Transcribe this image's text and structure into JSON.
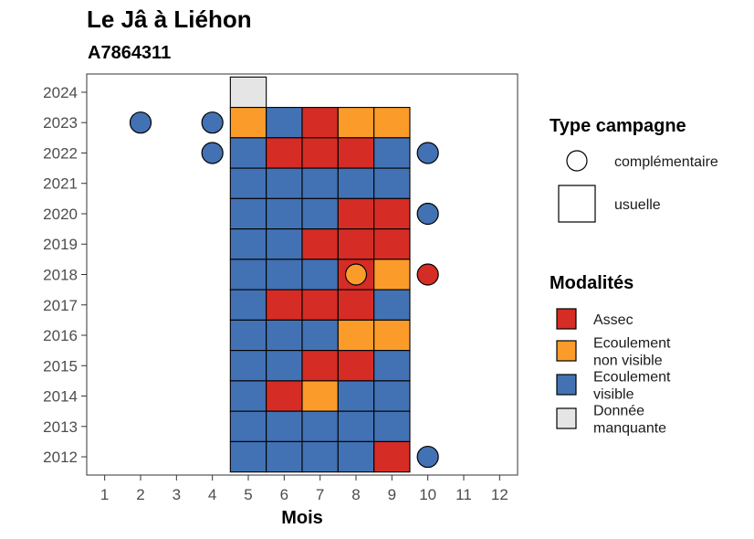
{
  "title": "Le Jâ à Liéhon",
  "subtitle": "A7864311",
  "chart_data": {
    "type": "heatmap",
    "xlabel": "Mois",
    "ylabel": "",
    "x_ticks": [
      1,
      2,
      3,
      4,
      5,
      6,
      7,
      8,
      9,
      10,
      11,
      12
    ],
    "y_ticks": [
      2012,
      2013,
      2014,
      2015,
      2016,
      2017,
      2018,
      2019,
      2020,
      2021,
      2022,
      2023,
      2024
    ],
    "xlim": [
      0.5,
      12.5
    ],
    "ylim": [
      2011.4,
      2024.6
    ],
    "colors": {
      "Assec": "#d52c25",
      "Ecoulement non visible": "#fb9c2a",
      "Ecoulement visible": "#4372b4",
      "Donnée manquante": "#e5e5e5"
    },
    "usuelle": [
      {
        "year": 2024,
        "month": 5,
        "value": "Donnée manquante"
      },
      {
        "year": 2023,
        "month": 5,
        "value": "Ecoulement non visible"
      },
      {
        "year": 2023,
        "month": 6,
        "value": "Ecoulement visible"
      },
      {
        "year": 2023,
        "month": 7,
        "value": "Assec"
      },
      {
        "year": 2023,
        "month": 8,
        "value": "Ecoulement non visible"
      },
      {
        "year": 2023,
        "month": 9,
        "value": "Ecoulement non visible"
      },
      {
        "year": 2022,
        "month": 5,
        "value": "Ecoulement visible"
      },
      {
        "year": 2022,
        "month": 6,
        "value": "Assec"
      },
      {
        "year": 2022,
        "month": 7,
        "value": "Assec"
      },
      {
        "year": 2022,
        "month": 8,
        "value": "Assec"
      },
      {
        "year": 2022,
        "month": 9,
        "value": "Ecoulement visible"
      },
      {
        "year": 2021,
        "month": 5,
        "value": "Ecoulement visible"
      },
      {
        "year": 2021,
        "month": 6,
        "value": "Ecoulement visible"
      },
      {
        "year": 2021,
        "month": 7,
        "value": "Ecoulement visible"
      },
      {
        "year": 2021,
        "month": 8,
        "value": "Ecoulement visible"
      },
      {
        "year": 2021,
        "month": 9,
        "value": "Ecoulement visible"
      },
      {
        "year": 2020,
        "month": 5,
        "value": "Ecoulement visible"
      },
      {
        "year": 2020,
        "month": 6,
        "value": "Ecoulement visible"
      },
      {
        "year": 2020,
        "month": 7,
        "value": "Ecoulement visible"
      },
      {
        "year": 2020,
        "month": 8,
        "value": "Assec"
      },
      {
        "year": 2020,
        "month": 9,
        "value": "Assec"
      },
      {
        "year": 2019,
        "month": 5,
        "value": "Ecoulement visible"
      },
      {
        "year": 2019,
        "month": 6,
        "value": "Ecoulement visible"
      },
      {
        "year": 2019,
        "month": 7,
        "value": "Assec"
      },
      {
        "year": 2019,
        "month": 8,
        "value": "Assec"
      },
      {
        "year": 2019,
        "month": 9,
        "value": "Assec"
      },
      {
        "year": 2018,
        "month": 5,
        "value": "Ecoulement visible"
      },
      {
        "year": 2018,
        "month": 6,
        "value": "Ecoulement visible"
      },
      {
        "year": 2018,
        "month": 7,
        "value": "Ecoulement visible"
      },
      {
        "year": 2018,
        "month": 8,
        "value": "Assec"
      },
      {
        "year": 2018,
        "month": 9,
        "value": "Ecoulement non visible"
      },
      {
        "year": 2017,
        "month": 5,
        "value": "Ecoulement visible"
      },
      {
        "year": 2017,
        "month": 6,
        "value": "Assec"
      },
      {
        "year": 2017,
        "month": 7,
        "value": "Assec"
      },
      {
        "year": 2017,
        "month": 8,
        "value": "Assec"
      },
      {
        "year": 2017,
        "month": 9,
        "value": "Ecoulement visible"
      },
      {
        "year": 2016,
        "month": 5,
        "value": "Ecoulement visible"
      },
      {
        "year": 2016,
        "month": 6,
        "value": "Ecoulement visible"
      },
      {
        "year": 2016,
        "month": 7,
        "value": "Ecoulement visible"
      },
      {
        "year": 2016,
        "month": 8,
        "value": "Ecoulement non visible"
      },
      {
        "year": 2016,
        "month": 9,
        "value": "Ecoulement non visible"
      },
      {
        "year": 2015,
        "month": 5,
        "value": "Ecoulement visible"
      },
      {
        "year": 2015,
        "month": 6,
        "value": "Ecoulement visible"
      },
      {
        "year": 2015,
        "month": 7,
        "value": "Assec"
      },
      {
        "year": 2015,
        "month": 8,
        "value": "Assec"
      },
      {
        "year": 2015,
        "month": 9,
        "value": "Ecoulement visible"
      },
      {
        "year": 2014,
        "month": 5,
        "value": "Ecoulement visible"
      },
      {
        "year": 2014,
        "month": 6,
        "value": "Assec"
      },
      {
        "year": 2014,
        "month": 7,
        "value": "Ecoulement non visible"
      },
      {
        "year": 2014,
        "month": 8,
        "value": "Ecoulement visible"
      },
      {
        "year": 2014,
        "month": 9,
        "value": "Ecoulement visible"
      },
      {
        "year": 2013,
        "month": 5,
        "value": "Ecoulement visible"
      },
      {
        "year": 2013,
        "month": 6,
        "value": "Ecoulement visible"
      },
      {
        "year": 2013,
        "month": 7,
        "value": "Ecoulement visible"
      },
      {
        "year": 2013,
        "month": 8,
        "value": "Ecoulement visible"
      },
      {
        "year": 2013,
        "month": 9,
        "value": "Ecoulement visible"
      },
      {
        "year": 2012,
        "month": 5,
        "value": "Ecoulement visible"
      },
      {
        "year": 2012,
        "month": 6,
        "value": "Ecoulement visible"
      },
      {
        "year": 2012,
        "month": 7,
        "value": "Ecoulement visible"
      },
      {
        "year": 2012,
        "month": 8,
        "value": "Ecoulement visible"
      },
      {
        "year": 2012,
        "month": 9,
        "value": "Assec"
      }
    ],
    "complementaire": [
      {
        "year": 2023,
        "month": 2,
        "value": "Ecoulement visible"
      },
      {
        "year": 2023,
        "month": 4,
        "value": "Ecoulement visible"
      },
      {
        "year": 2022,
        "month": 4,
        "value": "Ecoulement visible"
      },
      {
        "year": 2022,
        "month": 10,
        "value": "Ecoulement visible"
      },
      {
        "year": 2020,
        "month": 10,
        "value": "Ecoulement visible"
      },
      {
        "year": 2018,
        "month": 8,
        "value": "Ecoulement non visible"
      },
      {
        "year": 2018,
        "month": 10,
        "value": "Assec"
      },
      {
        "year": 2012,
        "month": 10,
        "value": "Ecoulement visible"
      }
    ],
    "legend_placement": "right",
    "legend_shape": {
      "title": "Type campagne",
      "items": [
        {
          "label": "complémentaire",
          "shape": "circle"
        },
        {
          "label": "usuelle",
          "shape": "square"
        }
      ]
    },
    "legend_fill": {
      "title": "Modalités",
      "items": [
        {
          "key": "Assec",
          "lines": [
            "Assec"
          ]
        },
        {
          "key": "Ecoulement non visible",
          "lines": [
            "Ecoulement",
            "non visible"
          ]
        },
        {
          "key": "Ecoulement visible",
          "lines": [
            "Ecoulement",
            "visible"
          ]
        },
        {
          "key": "Donnée manquante",
          "lines": [
            "Donnée",
            "manquante"
          ]
        }
      ]
    }
  }
}
